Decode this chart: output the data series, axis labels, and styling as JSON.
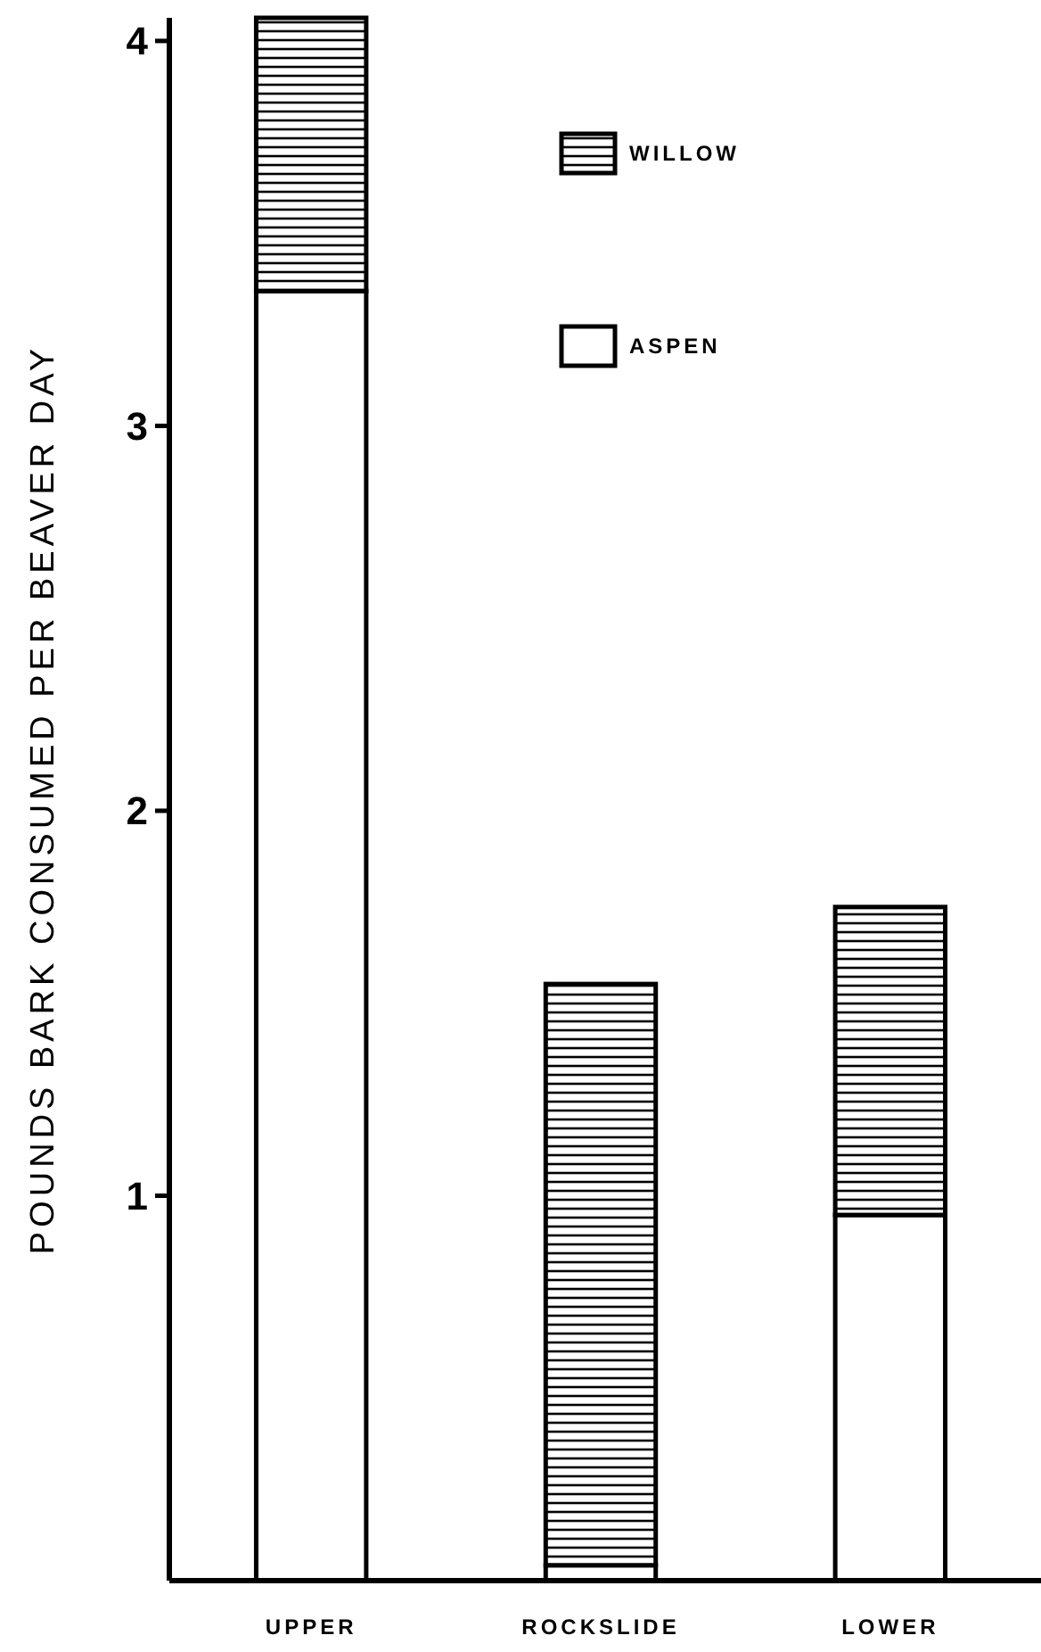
{
  "chart_data": {
    "type": "bar",
    "stacked": true,
    "ylabel": "POUNDS BARK CONSUMED PER BEAVER DAY",
    "categories": [
      "UPPER",
      "ROCKSLIDE",
      "LOWER"
    ],
    "series": [
      {
        "name": "ASPEN",
        "color": "#ffffff",
        "values": [
          3.35,
          0.04,
          0.95
        ]
      },
      {
        "name": "WILLOW",
        "color": "#000000",
        "values": [
          0.71,
          1.51,
          0.8
        ]
      }
    ],
    "ylim": [
      0,
      4.06
    ],
    "yticks": [
      1,
      2,
      3,
      4
    ],
    "grid": false,
    "legend": "top"
  }
}
